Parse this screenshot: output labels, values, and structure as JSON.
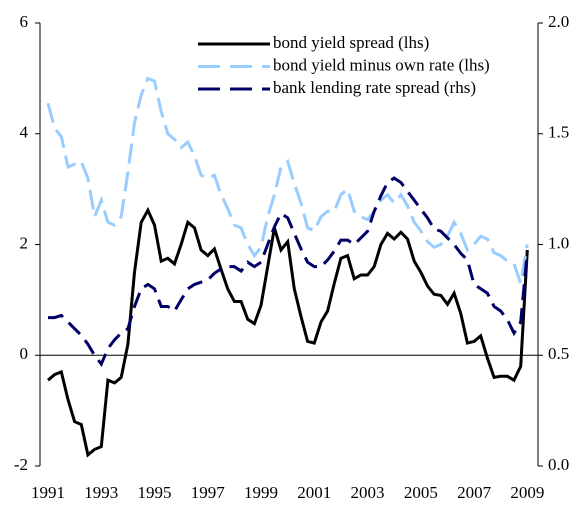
{
  "chart_data": {
    "type": "line",
    "x": [
      1991,
      1991.25,
      1991.5,
      1991.75,
      1992,
      1992.25,
      1992.5,
      1992.75,
      1993,
      1993.25,
      1993.5,
      1993.75,
      1994,
      1994.25,
      1994.5,
      1994.75,
      1995,
      1995.25,
      1995.5,
      1995.75,
      1996,
      1996.25,
      1996.5,
      1996.75,
      1997,
      1997.25,
      1997.5,
      1997.75,
      1998,
      1998.25,
      1998.5,
      1998.75,
      1999,
      1999.25,
      1999.5,
      1999.75,
      2000,
      2000.25,
      2000.5,
      2000.75,
      2001,
      2001.25,
      2001.5,
      2001.75,
      2002,
      2002.25,
      2002.5,
      2002.75,
      2003,
      2003.25,
      2003.5,
      2003.75,
      2004,
      2004.25,
      2004.5,
      2004.75,
      2005,
      2005.25,
      2005.5,
      2005.75,
      2006,
      2006.25,
      2006.5,
      2006.75,
      2007,
      2007.25,
      2007.5,
      2007.75,
      2008,
      2008.25,
      2008.5,
      2008.75,
      2009
    ],
    "series": [
      {
        "name": "bond yield spread (lhs)",
        "color": "#000000",
        "dash": "solid",
        "values": [
          -0.45,
          -0.35,
          -0.3,
          -0.8,
          -1.2,
          -1.25,
          -1.8,
          -1.7,
          -1.65,
          -0.45,
          -0.5,
          -0.4,
          0.2,
          1.5,
          2.4,
          2.62,
          2.35,
          1.7,
          1.75,
          1.65,
          2.0,
          2.4,
          2.3,
          1.9,
          1.8,
          1.92,
          1.55,
          1.2,
          0.97,
          0.97,
          0.65,
          0.57,
          0.9,
          1.6,
          2.3,
          1.9,
          2.05,
          1.2,
          0.7,
          0.25,
          0.22,
          0.6,
          0.8,
          1.3,
          1.75,
          1.8,
          1.38,
          1.45,
          1.45,
          1.6,
          2.0,
          2.2,
          2.1,
          2.22,
          2.1,
          1.7,
          1.5,
          1.25,
          1.1,
          1.08,
          0.92,
          1.12,
          0.75,
          0.22,
          0.25,
          0.35,
          -0.05,
          -0.4,
          -0.38,
          -0.38,
          -0.45,
          -0.2,
          1.9
        ]
      },
      {
        "name": "bond yield minus own rate (lhs)",
        "color": "#99ccff",
        "dash": "dashed",
        "values": [
          4.55,
          4.1,
          3.95,
          3.4,
          3.45,
          3.5,
          3.2,
          2.5,
          2.8,
          2.4,
          2.35,
          2.5,
          3.3,
          4.2,
          4.7,
          5.0,
          4.95,
          4.4,
          4.0,
          3.9,
          3.75,
          3.85,
          3.6,
          3.25,
          3.2,
          3.25,
          2.9,
          2.65,
          2.35,
          2.3,
          2.0,
          1.8,
          1.95,
          2.5,
          2.9,
          3.4,
          3.5,
          3.1,
          2.75,
          2.3,
          2.25,
          2.5,
          2.6,
          2.6,
          2.9,
          3.0,
          2.6,
          2.5,
          2.45,
          2.6,
          2.8,
          2.9,
          2.75,
          2.9,
          2.7,
          2.4,
          2.25,
          2.05,
          1.95,
          2.0,
          2.15,
          2.4,
          2.2,
          1.9,
          2.0,
          2.15,
          2.1,
          1.85,
          1.8,
          1.7,
          1.65,
          1.3,
          2.0
        ]
      },
      {
        "name": "bank lending rate spread (rhs)",
        "color": "#000066",
        "dash": "dashed",
        "axis": "y2",
        "values": [
          0.67,
          0.67,
          0.68,
          0.65,
          0.62,
          0.59,
          0.55,
          0.5,
          0.46,
          0.53,
          0.57,
          0.6,
          0.62,
          0.72,
          0.8,
          0.82,
          0.8,
          0.72,
          0.72,
          0.7,
          0.75,
          0.8,
          0.82,
          0.83,
          0.84,
          0.87,
          0.89,
          0.9,
          0.9,
          0.88,
          0.92,
          0.9,
          0.92,
          1.0,
          1.08,
          1.14,
          1.12,
          1.05,
          0.98,
          0.92,
          0.9,
          0.9,
          0.93,
          0.97,
          1.02,
          1.02,
          1.0,
          1.03,
          1.06,
          1.15,
          1.22,
          1.28,
          1.3,
          1.28,
          1.24,
          1.2,
          1.16,
          1.12,
          1.07,
          1.06,
          1.03,
          1.0,
          0.96,
          0.93,
          0.82,
          0.8,
          0.78,
          0.72,
          0.7,
          0.66,
          0.6,
          0.65,
          0.97
        ]
      }
    ],
    "xlim": [
      1990.7,
      2009.4
    ],
    "xticks": [
      1991,
      1993,
      1995,
      1997,
      1999,
      2001,
      2003,
      2005,
      2007,
      2009
    ],
    "ylim": [
      -2,
      6
    ],
    "yticks": [
      -2,
      0,
      2,
      4,
      6
    ],
    "y2lim": [
      0,
      2
    ],
    "y2ticks": [
      {
        "value": 0,
        "label": "0.0"
      },
      0.5,
      {
        "value": 1,
        "label": "1.0"
      },
      1.5,
      {
        "value": 2,
        "label": "2.0"
      }
    ],
    "legend": "top-right"
  }
}
